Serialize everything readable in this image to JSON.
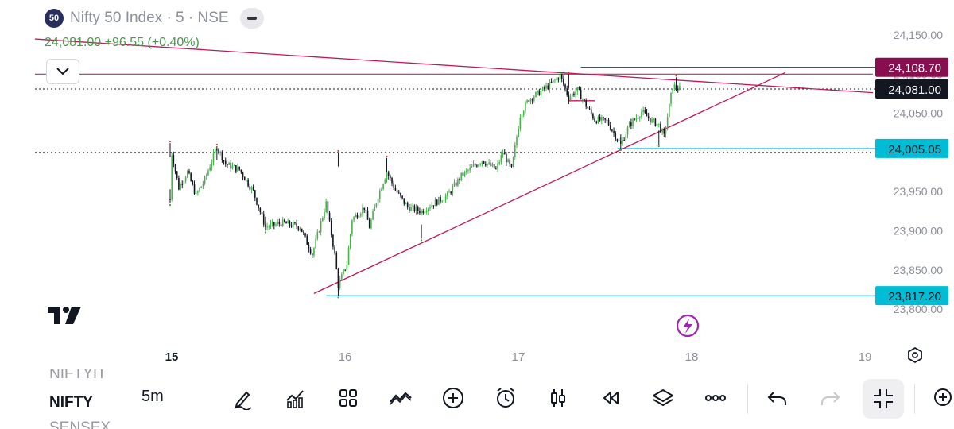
{
  "header": {
    "badge": "50",
    "title": "Nifty 50 Index · 5 · NSE",
    "quote": "24,081.00  +96.55 (+0.40%)"
  },
  "chart_data": {
    "type": "candlestick",
    "symbol": "Nifty 50 Index",
    "interval": "5",
    "exchange": "NSE",
    "ylim": [
      23780,
      24180
    ],
    "y_ticks": [
      24150,
      24100,
      24050,
      24000,
      23950,
      23900,
      23850,
      23800
    ],
    "y_tick_labels": [
      "24,150.00",
      "24,100.00",
      "24,050.00",
      "24,000.00",
      "23,950.00",
      "23,900.00",
      "23,850.00",
      "23,800.00"
    ],
    "x_range": [
      15.0,
      19.1
    ],
    "x_ticks": [
      15,
      16,
      17,
      18,
      19
    ],
    "x_tick_labels": [
      "15",
      "16",
      "17",
      "18",
      "19"
    ],
    "last_price": 24081.0,
    "path": [
      [
        15.0,
        23940
      ],
      [
        15.0,
        24010
      ],
      [
        15.05,
        23955
      ],
      [
        15.1,
        23975
      ],
      [
        15.15,
        23945
      ],
      [
        15.2,
        23965
      ],
      [
        15.27,
        24008
      ],
      [
        15.32,
        23985
      ],
      [
        15.4,
        23978
      ],
      [
        15.48,
        23950
      ],
      [
        15.55,
        23905
      ],
      [
        15.65,
        23910
      ],
      [
        15.75,
        23905
      ],
      [
        15.82,
        23870
      ],
      [
        15.9,
        23935
      ],
      [
        15.95,
        23870
      ],
      [
        15.97,
        23830
      ],
      [
        16.02,
        23858
      ],
      [
        16.05,
        23915
      ],
      [
        16.12,
        23930
      ],
      [
        16.15,
        23905
      ],
      [
        16.2,
        23945
      ],
      [
        16.25,
        23975
      ],
      [
        16.3,
        23952
      ],
      [
        16.37,
        23930
      ],
      [
        16.45,
        23925
      ],
      [
        16.52,
        23935
      ],
      [
        16.6,
        23945
      ],
      [
        16.68,
        23970
      ],
      [
        16.75,
        23982
      ],
      [
        16.8,
        23990
      ],
      [
        16.88,
        23978
      ],
      [
        16.92,
        24000
      ],
      [
        16.97,
        23978
      ],
      [
        17.02,
        24048
      ],
      [
        17.07,
        24068
      ],
      [
        17.12,
        24075
      ],
      [
        17.2,
        24088
      ],
      [
        17.25,
        24098
      ],
      [
        17.3,
        24070
      ],
      [
        17.35,
        24080
      ],
      [
        17.4,
        24060
      ],
      [
        17.45,
        24042
      ],
      [
        17.52,
        24040
      ],
      [
        17.6,
        24010
      ],
      [
        17.65,
        24035
      ],
      [
        17.72,
        24052
      ],
      [
        17.78,
        24040
      ],
      [
        17.82,
        24035
      ],
      [
        17.85,
        24020
      ],
      [
        17.9,
        24085
      ],
      [
        17.95,
        24080
      ]
    ],
    "highs": [
      [
        15.0,
        24012
      ],
      [
        15.27,
        24008
      ],
      [
        15.97,
        24000
      ],
      [
        16.25,
        23993
      ],
      [
        17.3,
        24100
      ],
      [
        17.92,
        24096
      ]
    ],
    "lows": [
      [
        15.0,
        23935
      ],
      [
        15.55,
        23900
      ],
      [
        15.97,
        23817
      ],
      [
        16.45,
        23890
      ],
      [
        17.6,
        24005
      ],
      [
        17.82,
        24010
      ]
    ],
    "horizontal_levels": [
      {
        "price": 24108.7,
        "label": "24,108.70",
        "color": "#880e4f",
        "line_color": "#131722",
        "x_start": 17.37
      },
      {
        "price": 24081.0,
        "label": "24,081.00",
        "color": "#131722",
        "line_color": "#131722",
        "style": "dotted",
        "x_start": 14.0
      },
      {
        "price": 24005.05,
        "label": "24,005.05",
        "color": "#00bcd4",
        "line_color": "#00bcd4",
        "x_start": 17.58
      },
      {
        "price": 23817.2,
        "label": "23,817.20",
        "color": "#00bcd4",
        "line_color": "#00bcd4",
        "x_start": 15.9
      }
    ],
    "extra_lines": [
      {
        "price": 24000,
        "color": "#131722",
        "style": "dotted",
        "x_start": 14.0
      },
      {
        "price": 24100,
        "color": "#b0306a",
        "style": "solid",
        "x_start": 14.0
      }
    ],
    "trendlines": [
      {
        "from": [
          14.0,
          24148
        ],
        "to": [
          19.5,
          24070
        ],
        "color": "#c2185b"
      },
      {
        "from": [
          15.83,
          23820
        ],
        "to": [
          18.55,
          24102
        ],
        "color": "#c2185b"
      }
    ],
    "small_segments": [
      {
        "from": [
          17.3,
          24066
        ],
        "to": [
          17.45,
          24066
        ],
        "color": "#c2185b"
      }
    ],
    "colors": {
      "up": "#4caf50",
      "down": "#131722",
      "grid_label": "#8c8f99"
    }
  },
  "toolbar": {
    "symbol_prev": "NIFTYIT",
    "symbol_current": "NIFTY",
    "symbol_next": "SENSEX",
    "interval": "5m",
    "icons": [
      "drawing-pencil-icon",
      "indicators-icon",
      "layouts-grid-icon",
      "compare-icon",
      "add-circle-icon",
      "alarm-icon",
      "chart-type-candles-icon",
      "replay-icon",
      "layers-icon",
      "more-dots-icon",
      "undo-icon",
      "redo-icon",
      "fullscreen-exit-icon",
      "zoom-icon"
    ]
  }
}
